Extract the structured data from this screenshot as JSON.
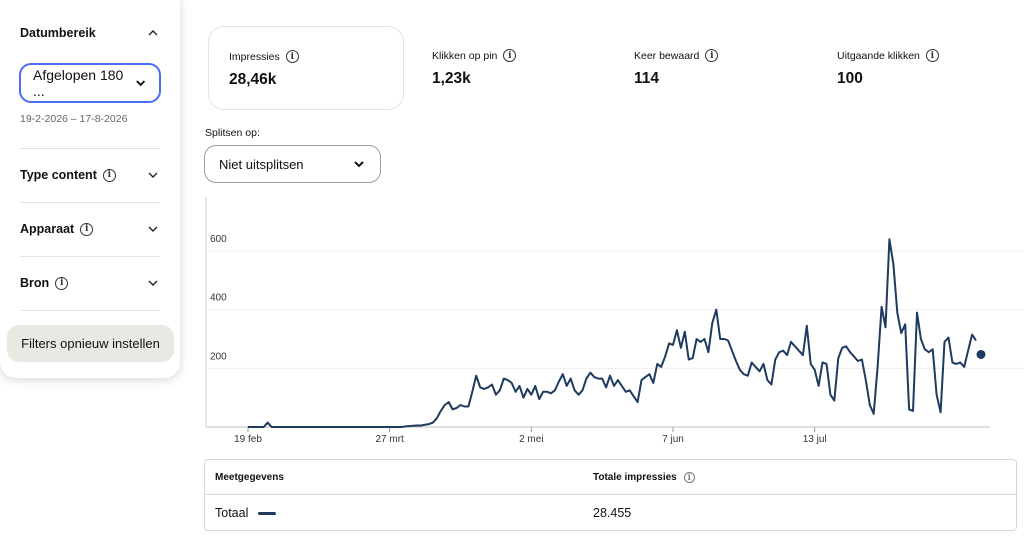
{
  "filters": {
    "date_range": {
      "title": "Datumbereik",
      "selected": "Afgelopen 180 ...",
      "dates": "19-2-2026 – 17-8-2026"
    },
    "sections": [
      {
        "label": "Type content"
      },
      {
        "label": "Apparaat"
      },
      {
        "label": "Bron"
      }
    ],
    "reset_label": "Filters opnieuw instellen"
  },
  "kpis": [
    {
      "label": "Impressies",
      "value": "28,46k"
    },
    {
      "label": "Klikken op pin",
      "value": "1,23k"
    },
    {
      "label": "Keer bewaard",
      "value": "114"
    },
    {
      "label": "Uitgaande klikken",
      "value": "100"
    }
  ],
  "split": {
    "label": "Splitsen op:",
    "selected": "Niet uitsplitsen"
  },
  "chart_data": {
    "type": "line",
    "x_ticks": [
      "19 feb",
      "27 mrt",
      "2 mei",
      "7 jun",
      "13 jul"
    ],
    "y_ticks": [
      "200",
      "400",
      "600"
    ],
    "ylim": [
      0,
      700
    ],
    "grid": true,
    "color": "#1e3a5f",
    "series": [
      {
        "name": "Totaal",
        "values": [
          0,
          0,
          0,
          0,
          0,
          15,
          0,
          0,
          0,
          0,
          0,
          0,
          0,
          0,
          0,
          0,
          0,
          0,
          0,
          0,
          0,
          0,
          0,
          0,
          0,
          0,
          0,
          0,
          0,
          0,
          0,
          0,
          0,
          0,
          0,
          0,
          0,
          0,
          0,
          0,
          2,
          3,
          4,
          5,
          5,
          8,
          10,
          15,
          30,
          55,
          75,
          85,
          60,
          65,
          75,
          70,
          70,
          120,
          175,
          135,
          130,
          135,
          145,
          110,
          125,
          165,
          160,
          150,
          120,
          140,
          100,
          130,
          110,
          140,
          95,
          120,
          120,
          115,
          125,
          155,
          180,
          140,
          165,
          125,
          110,
          125,
          165,
          185,
          170,
          165,
          165,
          135,
          175,
          140,
          160,
          140,
          120,
          125,
          105,
          85,
          160,
          170,
          180,
          150,
          215,
          205,
          240,
          285,
          280,
          330,
          270,
          325,
          230,
          235,
          300,
          290,
          300,
          255,
          355,
          400,
          300,
          300,
          295,
          260,
          225,
          195,
          180,
          175,
          220,
          205,
          190,
          215,
          160,
          145,
          230,
          255,
          260,
          245,
          290,
          275,
          260,
          245,
          345,
          215,
          195,
          140,
          220,
          215,
          110,
          90,
          235,
          270,
          275,
          255,
          240,
          225,
          230,
          160,
          75,
          45,
          205,
          410,
          340,
          640,
          555,
          390,
          320,
          350,
          60,
          55,
          390,
          300,
          265,
          255,
          265,
          110,
          50,
          290,
          305,
          220,
          215,
          220,
          205,
          260,
          315,
          295
        ]
      }
    ]
  },
  "table": {
    "headers": [
      "Meetgegevens",
      "Totale impressies"
    ],
    "row": {
      "label": "Totaal",
      "value": "28.455"
    }
  }
}
